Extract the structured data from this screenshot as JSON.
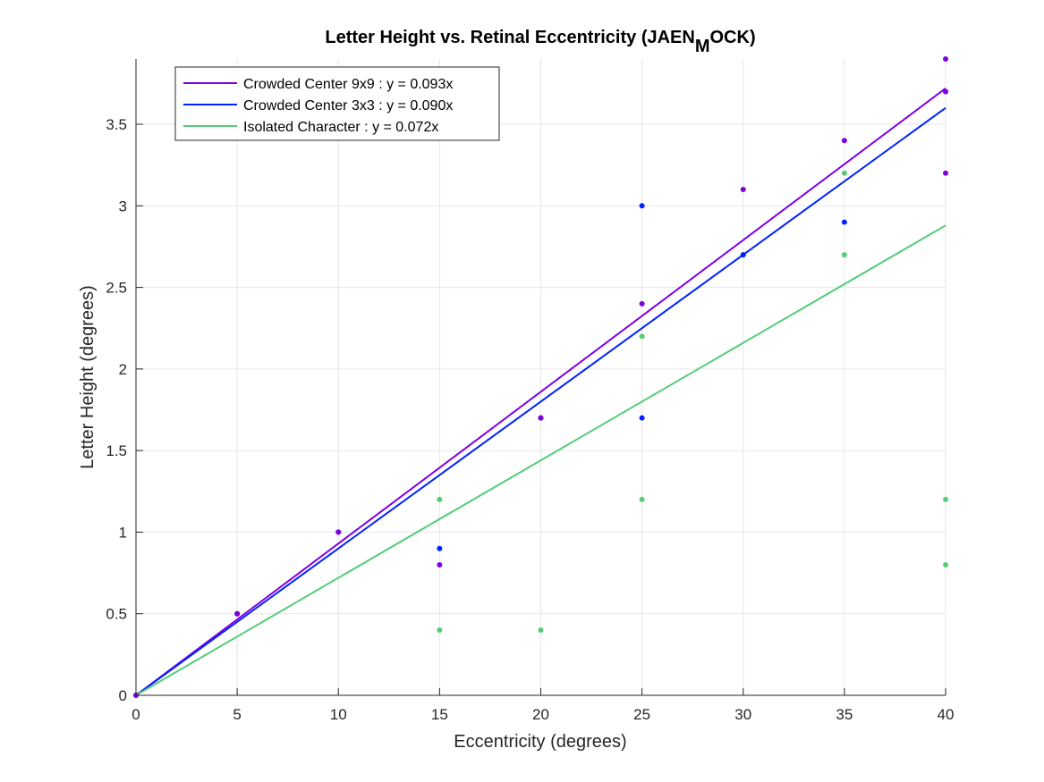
{
  "chart_data": {
    "type": "scatter",
    "title": {
      "prefix": "Letter Height vs. Retinal Eccentricity (JAEN",
      "subscript": "M",
      "suffix": "OCK)"
    },
    "xlabel": "Eccentricity (degrees)",
    "ylabel": "Letter Height (degrees)",
    "xlim": [
      0,
      40
    ],
    "ylim": [
      0,
      3.9
    ],
    "xticks": [
      "0",
      "5",
      "10",
      "15",
      "20",
      "25",
      "30",
      "35",
      "40"
    ],
    "yticks": [
      "0",
      "0.5",
      "1",
      "1.5",
      "2",
      "2.5",
      "3",
      "3.5"
    ],
    "grid": true,
    "legend_position": "top-left",
    "series": [
      {
        "name": "Crowded Center 9x9 : y = 0.093x",
        "color": "#8000e0",
        "slope": 0.093,
        "points": [
          [
            0,
            0
          ],
          [
            5,
            0.5
          ],
          [
            10,
            1.0
          ],
          [
            15,
            0.8
          ],
          [
            20,
            1.7
          ],
          [
            25,
            2.4
          ],
          [
            30,
            3.1
          ],
          [
            35,
            3.4
          ],
          [
            40,
            3.9
          ],
          [
            40,
            3.2
          ],
          [
            40,
            3.7
          ]
        ]
      },
      {
        "name": "Crowded Center 3x3 : y = 0.090x",
        "color": "#0022ff",
        "slope": 0.09,
        "points": [
          [
            0,
            0
          ],
          [
            5,
            0.5
          ],
          [
            10,
            1.0
          ],
          [
            15,
            0.9
          ],
          [
            20,
            1.7
          ],
          [
            25,
            3.0
          ],
          [
            25,
            1.7
          ],
          [
            30,
            2.7
          ],
          [
            35,
            2.9
          ],
          [
            40,
            3.7
          ]
        ]
      },
      {
        "name": "Isolated Character : y = 0.072x",
        "color": "#55cc77",
        "slope": 0.072,
        "points": [
          [
            0,
            0
          ],
          [
            5,
            0.5
          ],
          [
            10,
            1.0
          ],
          [
            15,
            1.2
          ],
          [
            15,
            0.4
          ],
          [
            20,
            1.7
          ],
          [
            20,
            0.4
          ],
          [
            25,
            2.2
          ],
          [
            25,
            1.2
          ],
          [
            30,
            2.7
          ],
          [
            35,
            3.2
          ],
          [
            35,
            2.7
          ],
          [
            40,
            1.2
          ],
          [
            40,
            0.8
          ]
        ]
      }
    ]
  }
}
